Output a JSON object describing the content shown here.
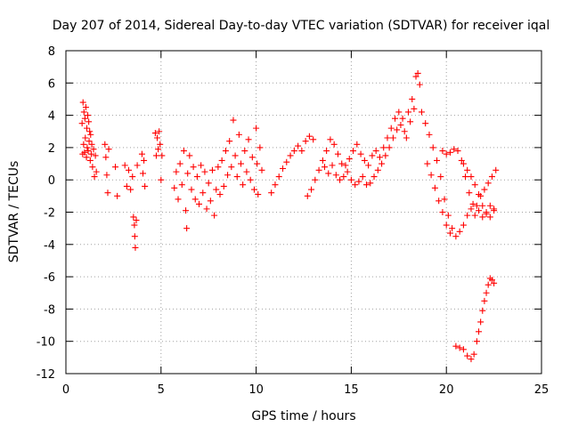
{
  "chart_data": {
    "type": "scatter",
    "title": "Day 207 of 2014, Sidereal Day-to-day VTEC variation (SDTVAR) for receiver iqal",
    "xlabel": "GPS time / hours",
    "ylabel": "SDTVAR / TECUs",
    "xlim": [
      0,
      25
    ],
    "ylim": [
      -12,
      8
    ],
    "xticks": [
      "0",
      "5",
      "10",
      "15",
      "20",
      "25"
    ],
    "yticks": [
      "-12",
      "-10",
      "-8",
      "-6",
      "-4",
      "-2",
      "0",
      "2",
      "4",
      "6",
      "8"
    ],
    "grid": true,
    "marker": "+",
    "series": [
      {
        "name": "SDTVAR",
        "color": "#ff0000",
        "points": [
          [
            0.85,
            3.5
          ],
          [
            0.88,
            1.6
          ],
          [
            0.9,
            4.8
          ],
          [
            0.93,
            2.2
          ],
          [
            0.95,
            4.2
          ],
          [
            0.98,
            1.7
          ],
          [
            1.0,
            3.8
          ],
          [
            1.02,
            2.6
          ],
          [
            1.05,
            4.5
          ],
          [
            1.08,
            1.4
          ],
          [
            1.1,
            3.2
          ],
          [
            1.12,
            2.0
          ],
          [
            1.15,
            4.0
          ],
          [
            1.17,
            1.8
          ],
          [
            1.2,
            3.6
          ],
          [
            1.22,
            2.4
          ],
          [
            1.25,
            3.0
          ],
          [
            1.28,
            1.2
          ],
          [
            1.3,
            2.8
          ],
          [
            1.33,
            1.6
          ],
          [
            1.36,
            2.2
          ],
          [
            1.4,
            0.8
          ],
          [
            1.45,
            1.9
          ],
          [
            1.5,
            0.2
          ],
          [
            1.55,
            1.5
          ],
          [
            1.6,
            0.5
          ],
          [
            2.05,
            2.2
          ],
          [
            2.1,
            1.4
          ],
          [
            2.15,
            0.3
          ],
          [
            2.2,
            -0.8
          ],
          [
            2.25,
            1.9
          ],
          [
            2.6,
            0.8
          ],
          [
            2.7,
            -1.0
          ],
          [
            3.1,
            0.9
          ],
          [
            3.2,
            -0.4
          ],
          [
            3.3,
            0.6
          ],
          [
            3.4,
            -0.6
          ],
          [
            3.5,
            0.2
          ],
          [
            3.55,
            -2.3
          ],
          [
            3.6,
            -2.8
          ],
          [
            3.62,
            -3.5
          ],
          [
            3.65,
            -4.2
          ],
          [
            3.7,
            -2.5
          ],
          [
            3.75,
            0.9
          ],
          [
            4.0,
            1.6
          ],
          [
            4.05,
            0.4
          ],
          [
            4.1,
            1.2
          ],
          [
            4.15,
            -0.4
          ],
          [
            4.7,
            2.9
          ],
          [
            4.75,
            1.5
          ],
          [
            4.8,
            2.6
          ],
          [
            4.85,
            1.9
          ],
          [
            4.9,
            3.0
          ],
          [
            4.95,
            2.2
          ],
          [
            5.0,
            0.0
          ],
          [
            5.05,
            1.5
          ],
          [
            5.7,
            -0.5
          ],
          [
            5.8,
            0.5
          ],
          [
            5.9,
            -1.2
          ],
          [
            6.0,
            1.0
          ],
          [
            6.1,
            -0.3
          ],
          [
            6.2,
            1.8
          ],
          [
            6.3,
            -1.9
          ],
          [
            6.35,
            -3.0
          ],
          [
            6.4,
            0.4
          ],
          [
            6.5,
            1.5
          ],
          [
            6.6,
            -0.6
          ],
          [
            6.7,
            0.8
          ],
          [
            6.8,
            -1.2
          ],
          [
            6.9,
            0.2
          ],
          [
            7.0,
            -1.5
          ],
          [
            7.1,
            0.9
          ],
          [
            7.2,
            -0.8
          ],
          [
            7.3,
            0.5
          ],
          [
            7.4,
            -1.8
          ],
          [
            7.5,
            -0.2
          ],
          [
            7.6,
            -1.3
          ],
          [
            7.7,
            0.6
          ],
          [
            7.8,
            -2.2
          ],
          [
            7.9,
            -0.6
          ],
          [
            8.0,
            0.8
          ],
          [
            8.1,
            -0.9
          ],
          [
            8.2,
            1.2
          ],
          [
            8.3,
            -0.4
          ],
          [
            8.4,
            1.8
          ],
          [
            8.5,
            0.3
          ],
          [
            8.6,
            2.4
          ],
          [
            8.7,
            0.8
          ],
          [
            8.8,
            3.7
          ],
          [
            8.9,
            1.5
          ],
          [
            9.0,
            0.2
          ],
          [
            9.1,
            2.8
          ],
          [
            9.2,
            1.0
          ],
          [
            9.3,
            -0.3
          ],
          [
            9.4,
            1.8
          ],
          [
            9.5,
            0.5
          ],
          [
            9.6,
            2.5
          ],
          [
            9.7,
            0.0
          ],
          [
            9.8,
            1.4
          ],
          [
            9.9,
            -0.6
          ],
          [
            10.0,
            3.2
          ],
          [
            10.05,
            1.0
          ],
          [
            10.1,
            -0.9
          ],
          [
            10.2,
            2.0
          ],
          [
            10.3,
            0.6
          ],
          [
            10.8,
            -0.8
          ],
          [
            11.0,
            -0.3
          ],
          [
            11.2,
            0.2
          ],
          [
            11.4,
            0.7
          ],
          [
            11.6,
            1.1
          ],
          [
            11.8,
            1.5
          ],
          [
            12.0,
            1.8
          ],
          [
            12.2,
            2.1
          ],
          [
            12.4,
            1.8
          ],
          [
            12.6,
            2.4
          ],
          [
            12.8,
            2.7
          ],
          [
            13.0,
            2.5
          ],
          [
            12.7,
            -1.0
          ],
          [
            12.9,
            -0.6
          ],
          [
            13.1,
            0.0
          ],
          [
            13.3,
            0.6
          ],
          [
            13.5,
            1.2
          ],
          [
            13.7,
            1.8
          ],
          [
            13.9,
            2.5
          ],
          [
            14.1,
            2.2
          ],
          [
            14.3,
            1.6
          ],
          [
            14.5,
            1.0
          ],
          [
            14.7,
            0.9
          ],
          [
            14.9,
            1.3
          ],
          [
            15.1,
            1.8
          ],
          [
            15.3,
            2.2
          ],
          [
            15.5,
            1.6
          ],
          [
            15.7,
            1.2
          ],
          [
            15.9,
            0.9
          ],
          [
            16.1,
            1.5
          ],
          [
            16.3,
            1.8
          ],
          [
            13.6,
            0.8
          ],
          [
            13.8,
            0.4
          ],
          [
            14.0,
            0.9
          ],
          [
            14.2,
            0.3
          ],
          [
            14.4,
            0.0
          ],
          [
            14.6,
            0.2
          ],
          [
            14.8,
            0.5
          ],
          [
            15.0,
            0.0
          ],
          [
            15.2,
            -0.3
          ],
          [
            15.4,
            -0.1
          ],
          [
            15.6,
            0.2
          ],
          [
            15.8,
            -0.3
          ],
          [
            16.0,
            -0.2
          ],
          [
            16.2,
            0.2
          ],
          [
            16.4,
            0.6
          ],
          [
            16.6,
            1.0
          ],
          [
            16.8,
            1.5
          ],
          [
            17.0,
            2.0
          ],
          [
            17.2,
            2.6
          ],
          [
            17.4,
            3.1
          ],
          [
            17.6,
            3.4
          ],
          [
            17.8,
            3.0
          ],
          [
            18.0,
            4.2
          ],
          [
            18.2,
            5.0
          ],
          [
            18.4,
            6.4
          ],
          [
            18.5,
            6.6
          ],
          [
            18.6,
            5.9
          ],
          [
            16.5,
            1.4
          ],
          [
            16.7,
            2.0
          ],
          [
            16.9,
            2.6
          ],
          [
            17.1,
            3.2
          ],
          [
            17.3,
            3.8
          ],
          [
            17.5,
            4.2
          ],
          [
            17.7,
            3.8
          ],
          [
            17.9,
            2.6
          ],
          [
            18.1,
            3.6
          ],
          [
            18.3,
            4.4
          ],
          [
            18.7,
            4.2
          ],
          [
            18.9,
            3.5
          ],
          [
            19.1,
            2.8
          ],
          [
            19.3,
            2.0
          ],
          [
            19.5,
            1.2
          ],
          [
            19.7,
            0.2
          ],
          [
            19.9,
            -1.2
          ],
          [
            20.1,
            -2.2
          ],
          [
            20.3,
            -3.0
          ],
          [
            20.5,
            -3.5
          ],
          [
            20.7,
            -3.2
          ],
          [
            20.9,
            -2.8
          ],
          [
            21.1,
            -2.2
          ],
          [
            21.3,
            -1.8
          ],
          [
            21.5,
            -2.2
          ],
          [
            21.7,
            -1.9
          ],
          [
            21.9,
            -2.3
          ],
          [
            22.1,
            -2.0
          ],
          [
            22.3,
            -1.6
          ],
          [
            22.5,
            -1.8
          ],
          [
            19.0,
            1.0
          ],
          [
            19.2,
            0.3
          ],
          [
            19.4,
            -0.5
          ],
          [
            19.6,
            -1.3
          ],
          [
            19.8,
            -2.0
          ],
          [
            20.0,
            -2.8
          ],
          [
            20.2,
            -3.3
          ],
          [
            19.8,
            1.8
          ],
          [
            20.0,
            1.6
          ],
          [
            20.2,
            1.7
          ],
          [
            20.4,
            1.9
          ],
          [
            20.6,
            1.8
          ],
          [
            20.8,
            1.2
          ],
          [
            21.0,
            0.2
          ],
          [
            21.2,
            -0.8
          ],
          [
            21.4,
            -1.5
          ],
          [
            21.6,
            -1.6
          ],
          [
            21.8,
            -1.0
          ],
          [
            22.0,
            -0.6
          ],
          [
            22.2,
            -0.2
          ],
          [
            22.4,
            0.2
          ],
          [
            22.6,
            0.6
          ],
          [
            20.9,
            1.0
          ],
          [
            21.1,
            0.6
          ],
          [
            21.3,
            0.2
          ],
          [
            21.5,
            -0.3
          ],
          [
            21.7,
            -0.9
          ],
          [
            21.9,
            -1.6
          ],
          [
            22.1,
            -2.1
          ],
          [
            22.3,
            -2.3
          ],
          [
            22.5,
            -1.9
          ],
          [
            20.5,
            -10.3
          ],
          [
            20.7,
            -10.4
          ],
          [
            20.9,
            -10.5
          ],
          [
            21.1,
            -10.9
          ],
          [
            21.3,
            -11.1
          ],
          [
            21.45,
            -10.8
          ],
          [
            21.6,
            -10.0
          ],
          [
            21.7,
            -9.4
          ],
          [
            21.8,
            -8.8
          ],
          [
            21.9,
            -8.1
          ],
          [
            22.0,
            -7.5
          ],
          [
            22.1,
            -7.0
          ],
          [
            22.2,
            -6.5
          ],
          [
            22.3,
            -6.1
          ],
          [
            22.4,
            -6.2
          ],
          [
            22.5,
            -6.4
          ]
        ]
      }
    ]
  }
}
